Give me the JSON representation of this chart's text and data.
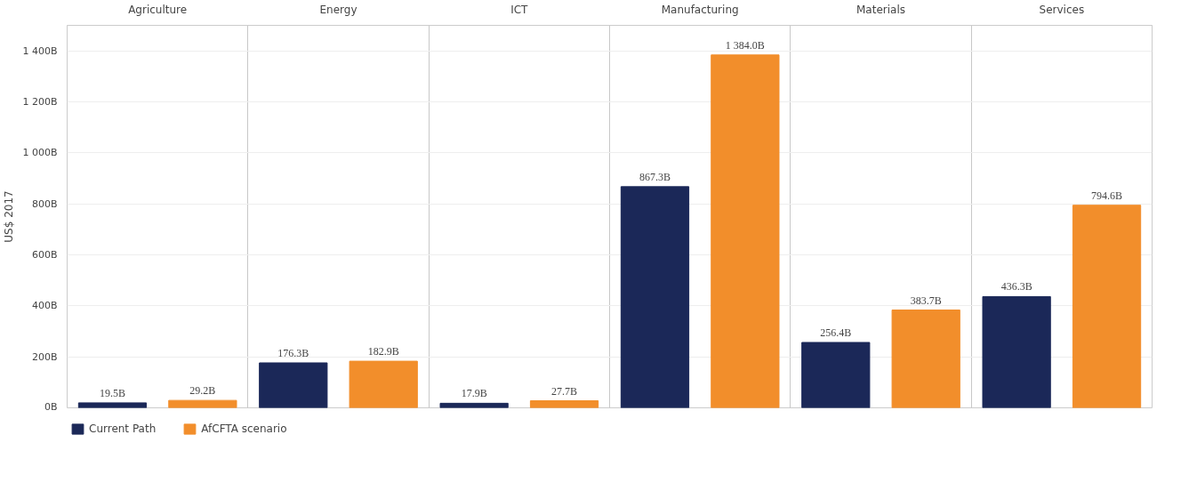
{
  "chart_data": {
    "type": "bar",
    "ylabel": "US$ 2017",
    "categories": [
      "Agriculture",
      "Energy",
      "ICT",
      "Manufacturing",
      "Materials",
      "Services"
    ],
    "series": [
      {
        "name": "Current Path",
        "color": "#1b2858",
        "values": [
          19.5,
          176.3,
          17.9,
          867.3,
          256.4,
          436.3
        ],
        "value_labels": [
          "19.5B",
          "176.3B",
          "17.9B",
          "867.3B",
          "256.4B",
          "436.3B"
        ]
      },
      {
        "name": "AfCFTA scenario",
        "color": "#f28e2b",
        "values": [
          29.2,
          182.9,
          27.7,
          1384.0,
          383.7,
          794.6
        ],
        "value_labels": [
          "29.2B",
          "182.9B",
          "27.7B",
          "1 384.0B",
          "383.7B",
          "794.6B"
        ]
      }
    ],
    "ylim": [
      0,
      1500
    ],
    "yticks": [
      {
        "value": 0,
        "label": "0B"
      },
      {
        "value": 200,
        "label": "200B"
      },
      {
        "value": 400,
        "label": "400B"
      },
      {
        "value": 600,
        "label": "600B"
      },
      {
        "value": 800,
        "label": "800B"
      },
      {
        "value": 1000,
        "label": "1 000B"
      },
      {
        "value": 1200,
        "label": "1 200B"
      },
      {
        "value": 1400,
        "label": "1 400B"
      }
    ],
    "grid": true,
    "legend": "bottom left"
  }
}
